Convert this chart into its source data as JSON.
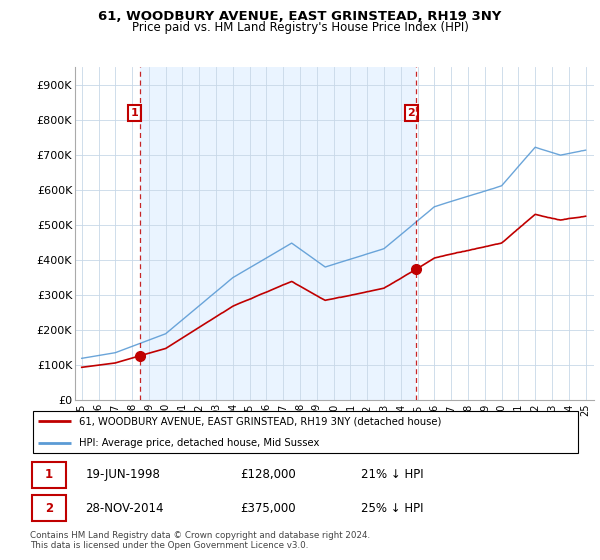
{
  "title": "61, WOODBURY AVENUE, EAST GRINSTEAD, RH19 3NY",
  "subtitle": "Price paid vs. HM Land Registry's House Price Index (HPI)",
  "legend_line1": "61, WOODBURY AVENUE, EAST GRINSTEAD, RH19 3NY (detached house)",
  "legend_line2": "HPI: Average price, detached house, Mid Sussex",
  "sale1_date": "19-JUN-1998",
  "sale1_price": 128000,
  "sale1_label": "21% ↓ HPI",
  "sale2_date": "28-NOV-2014",
  "sale2_price": 375000,
  "sale2_label": "25% ↓ HPI",
  "footer": "Contains HM Land Registry data © Crown copyright and database right 2024.\nThis data is licensed under the Open Government Licence v3.0.",
  "hpi_color": "#5b9bd5",
  "price_color": "#c00000",
  "vline_color": "#c00000",
  "shade_color": "#ddeeff",
  "background_color": "#ffffff",
  "ylim": [
    0,
    950000
  ],
  "yticks": [
    0,
    100000,
    200000,
    300000,
    400000,
    500000,
    600000,
    700000,
    800000,
    900000
  ],
  "ytick_labels": [
    "£0",
    "£100K",
    "£200K",
    "£300K",
    "£400K",
    "£500K",
    "£600K",
    "£700K",
    "£800K",
    "£900K"
  ],
  "sale1_x": 1998.46,
  "sale2_x": 2014.92,
  "x_start_year": 1995,
  "x_end_year": 2025
}
